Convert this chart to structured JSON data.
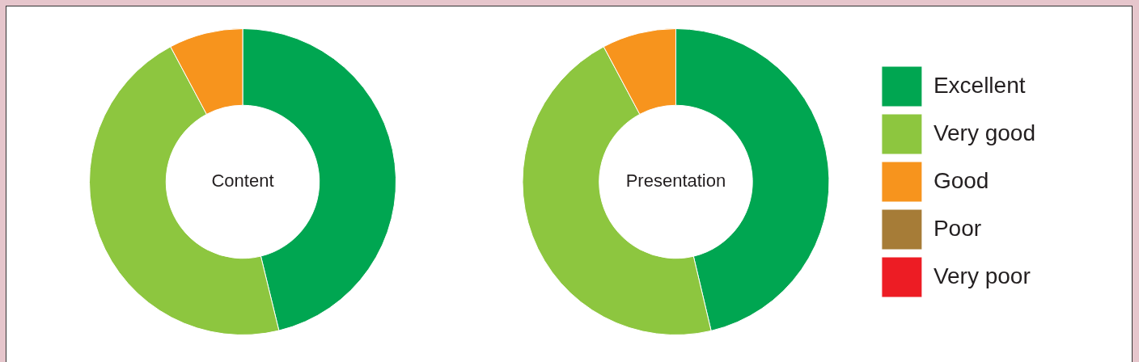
{
  "chart_data": [
    {
      "type": "donut",
      "title": "Content",
      "categories": [
        null,
        null,
        null,
        null,
        null
      ],
      "values": [
        46.2,
        46,
        7.8,
        0,
        0
      ],
      "colors": [
        "#00a651",
        "#8dc63f",
        "#f7941d",
        "#a67c37",
        "#ed1c24"
      ],
      "legend": false
    },
    {
      "type": "donut",
      "title": "Presentation",
      "categories": [
        "Excellent",
        "Very good",
        "Good",
        "Poor",
        "Very poor"
      ],
      "values": [
        46.3,
        45.9,
        7.8,
        0,
        0
      ],
      "colors": [
        "#00a651",
        "#8dc63f",
        "#f7941d",
        "#a67c37",
        "#ed1c24"
      ],
      "legend": "right"
    }
  ]
}
